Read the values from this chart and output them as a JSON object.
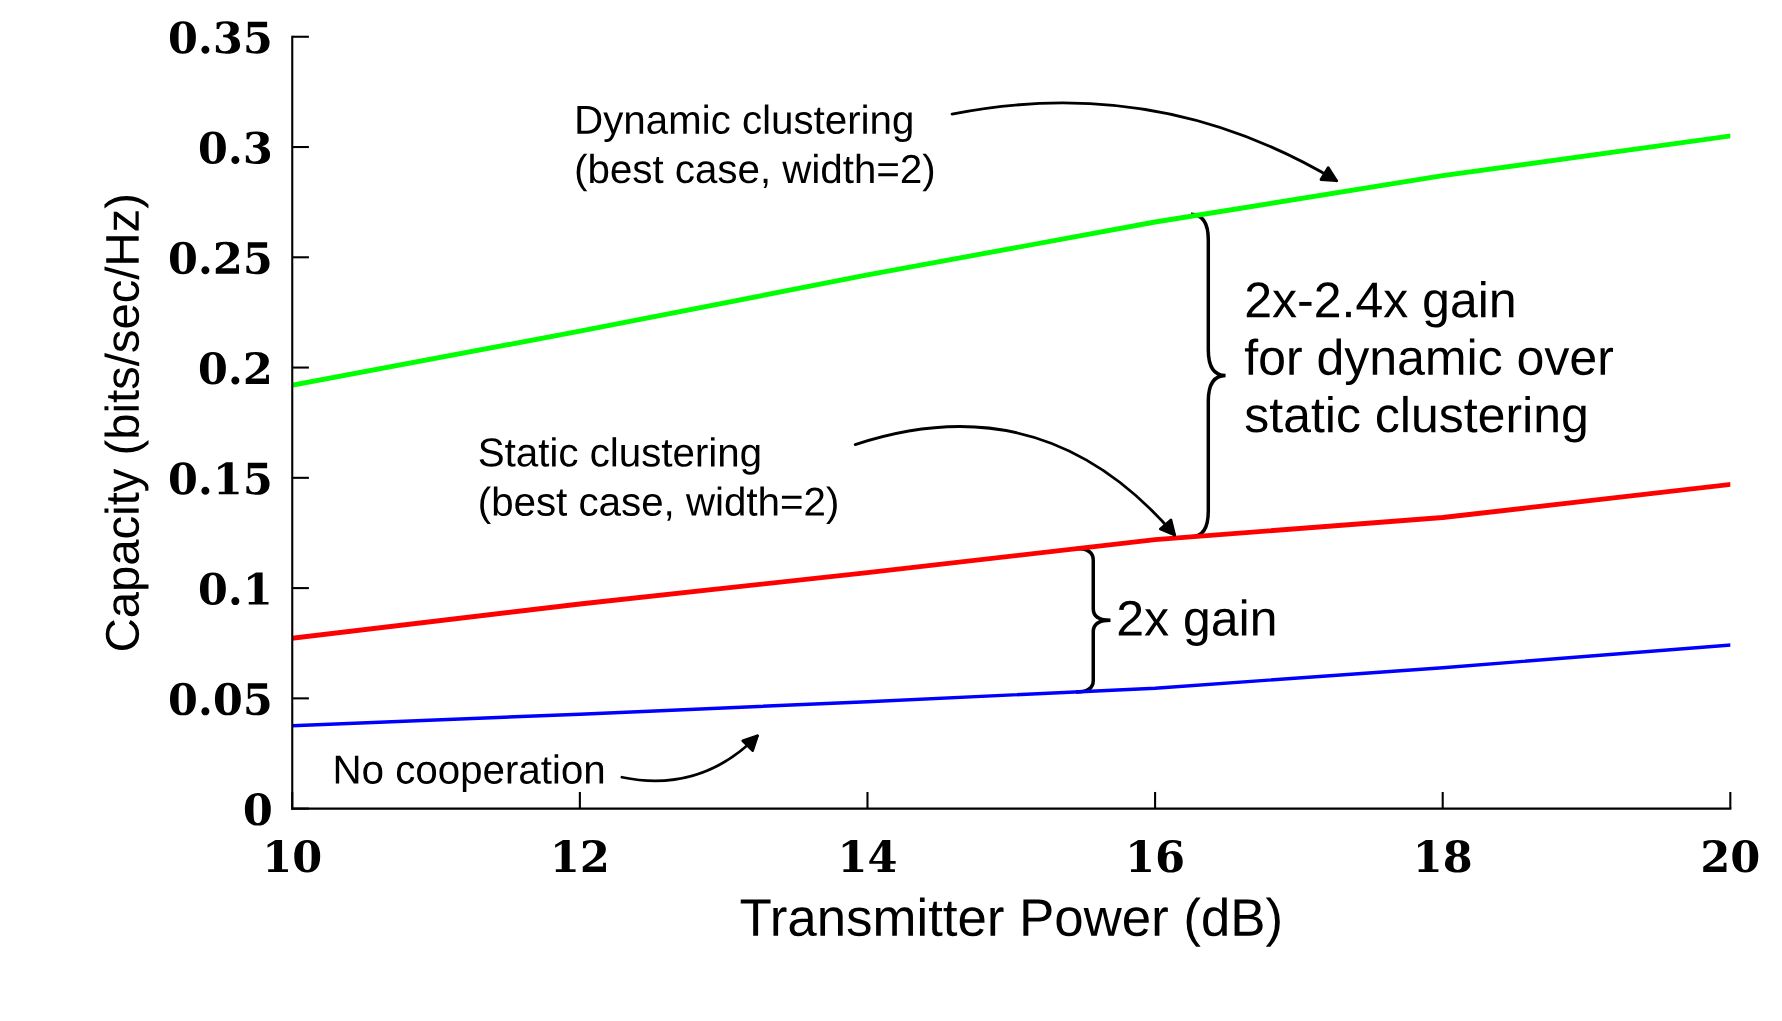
{
  "chart_data": {
    "type": "line",
    "xlabel": "Transmitter Power (dB)",
    "ylabel": "Capacity (bits/sec/Hz)",
    "x": [
      10,
      12,
      14,
      16,
      18,
      20
    ],
    "series": [
      {
        "color": "#00ff00",
        "values": [
          0.192,
          0.2165,
          0.242,
          0.266,
          0.287,
          0.305
        ]
      },
      {
        "color": "#ff0000",
        "values": [
          0.0773,
          0.0928,
          0.107,
          0.122,
          0.132,
          0.147
        ]
      },
      {
        "color": "#0000ff",
        "values": [
          0.0376,
          0.0428,
          0.0485,
          0.0546,
          0.0639,
          0.0742
        ]
      }
    ],
    "xlim": [
      10,
      20
    ],
    "xticks": [
      10,
      12,
      14,
      16,
      18,
      20
    ],
    "ylim": [
      0,
      0.35
    ],
    "yticks": [
      {
        "value": 0,
        "label": "0"
      },
      {
        "value": 0.05,
        "label": "0.05"
      },
      {
        "value": 0.1,
        "label": "0.1"
      },
      {
        "value": 0.15,
        "label": "0.15"
      },
      {
        "value": 0.2,
        "label": "0.2"
      },
      {
        "value": 0.25,
        "label": "0.25"
      },
      {
        "value": 0.3,
        "label": "0.3"
      },
      {
        "value": 0.35,
        "label": "0.35"
      }
    ],
    "grid": false,
    "legend": false,
    "marker": "none",
    "line_style": "solid",
    "annotations": [
      "Dynamic clustering\n(best case, width=2)",
      {
        "text": "Static clustering\n(best case, width=2)",
        "x": 16.15,
        "y": 0.123
      },
      "No cooperation",
      {
        "text": "2x-2.4x gain\nfor dynamic over\nstatic clustering",
        "x": 16.25,
        "y": 0.2695
      },
      {
        "text": "2x gain",
        "x": 15.45,
        "y": 0.118
      }
    ]
  }
}
